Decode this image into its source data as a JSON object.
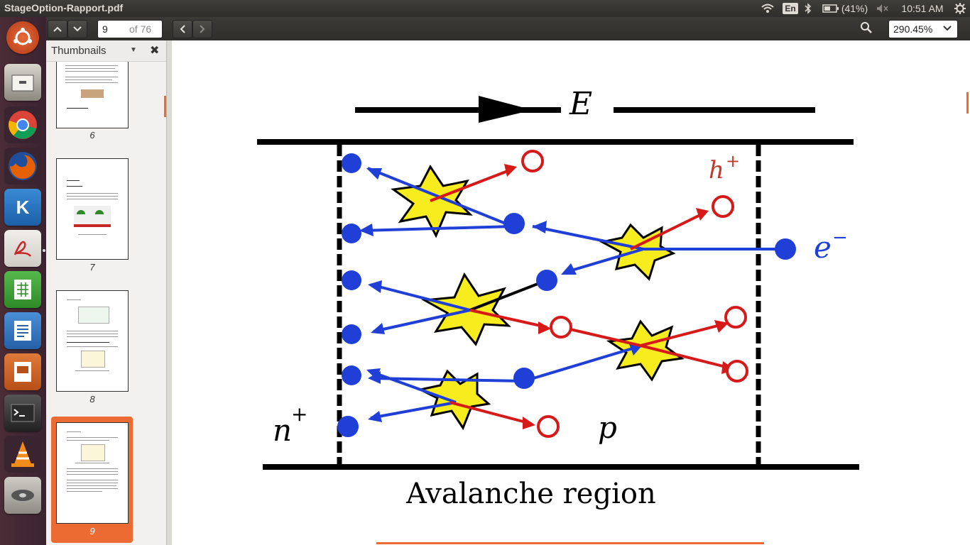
{
  "window": {
    "title": "StageOption-Rapport.pdf"
  },
  "tray": {
    "keyboard": "En",
    "battery": "(41%)",
    "clock": "10:51 AM"
  },
  "launcher": {
    "apps": [
      "ubuntu-dash",
      "files",
      "chrome",
      "firefox",
      "kile",
      "pdf-reader",
      "calc",
      "writer",
      "impress",
      "terminal",
      "vlc",
      "disks"
    ]
  },
  "toolbar": {
    "page_current": "9",
    "page_total": "of 76",
    "zoom": "290.45%"
  },
  "sidebar": {
    "title": "Thumbnails",
    "pages": [
      "6",
      "7",
      "8",
      "9"
    ],
    "selected_page": "9"
  },
  "figure": {
    "field_label": "E",
    "hole_label": "h",
    "hole_sup": "+",
    "electron_label": "e",
    "electron_sup": "−",
    "n_label": "n",
    "n_sup": "+",
    "p_label": "p",
    "caption": "Avalanche region"
  },
  "colors": {
    "accent": "#ec6b33",
    "electron": "#1f3fd6",
    "hole": "#d61a1a",
    "star": "#f7ec1e"
  }
}
